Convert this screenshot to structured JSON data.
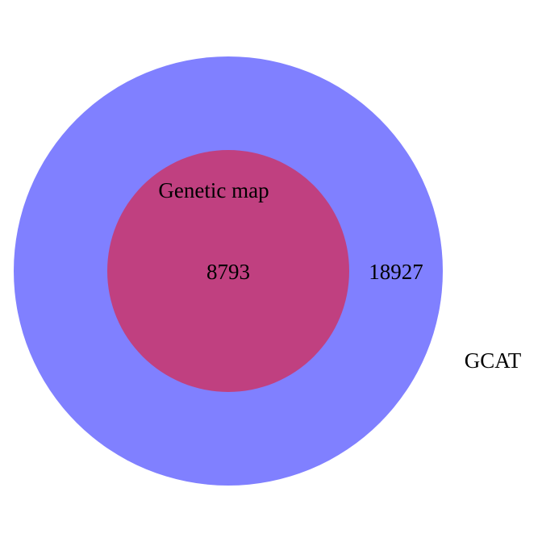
{
  "venn": {
    "sets": [
      {
        "name": "GCAT",
        "color": "#8080FF",
        "region_count": "18927"
      },
      {
        "name": "Genetic map",
        "color": "#C04080",
        "region_count": "8793"
      }
    ],
    "relation": "Genetic map is fully contained in GCAT"
  }
}
